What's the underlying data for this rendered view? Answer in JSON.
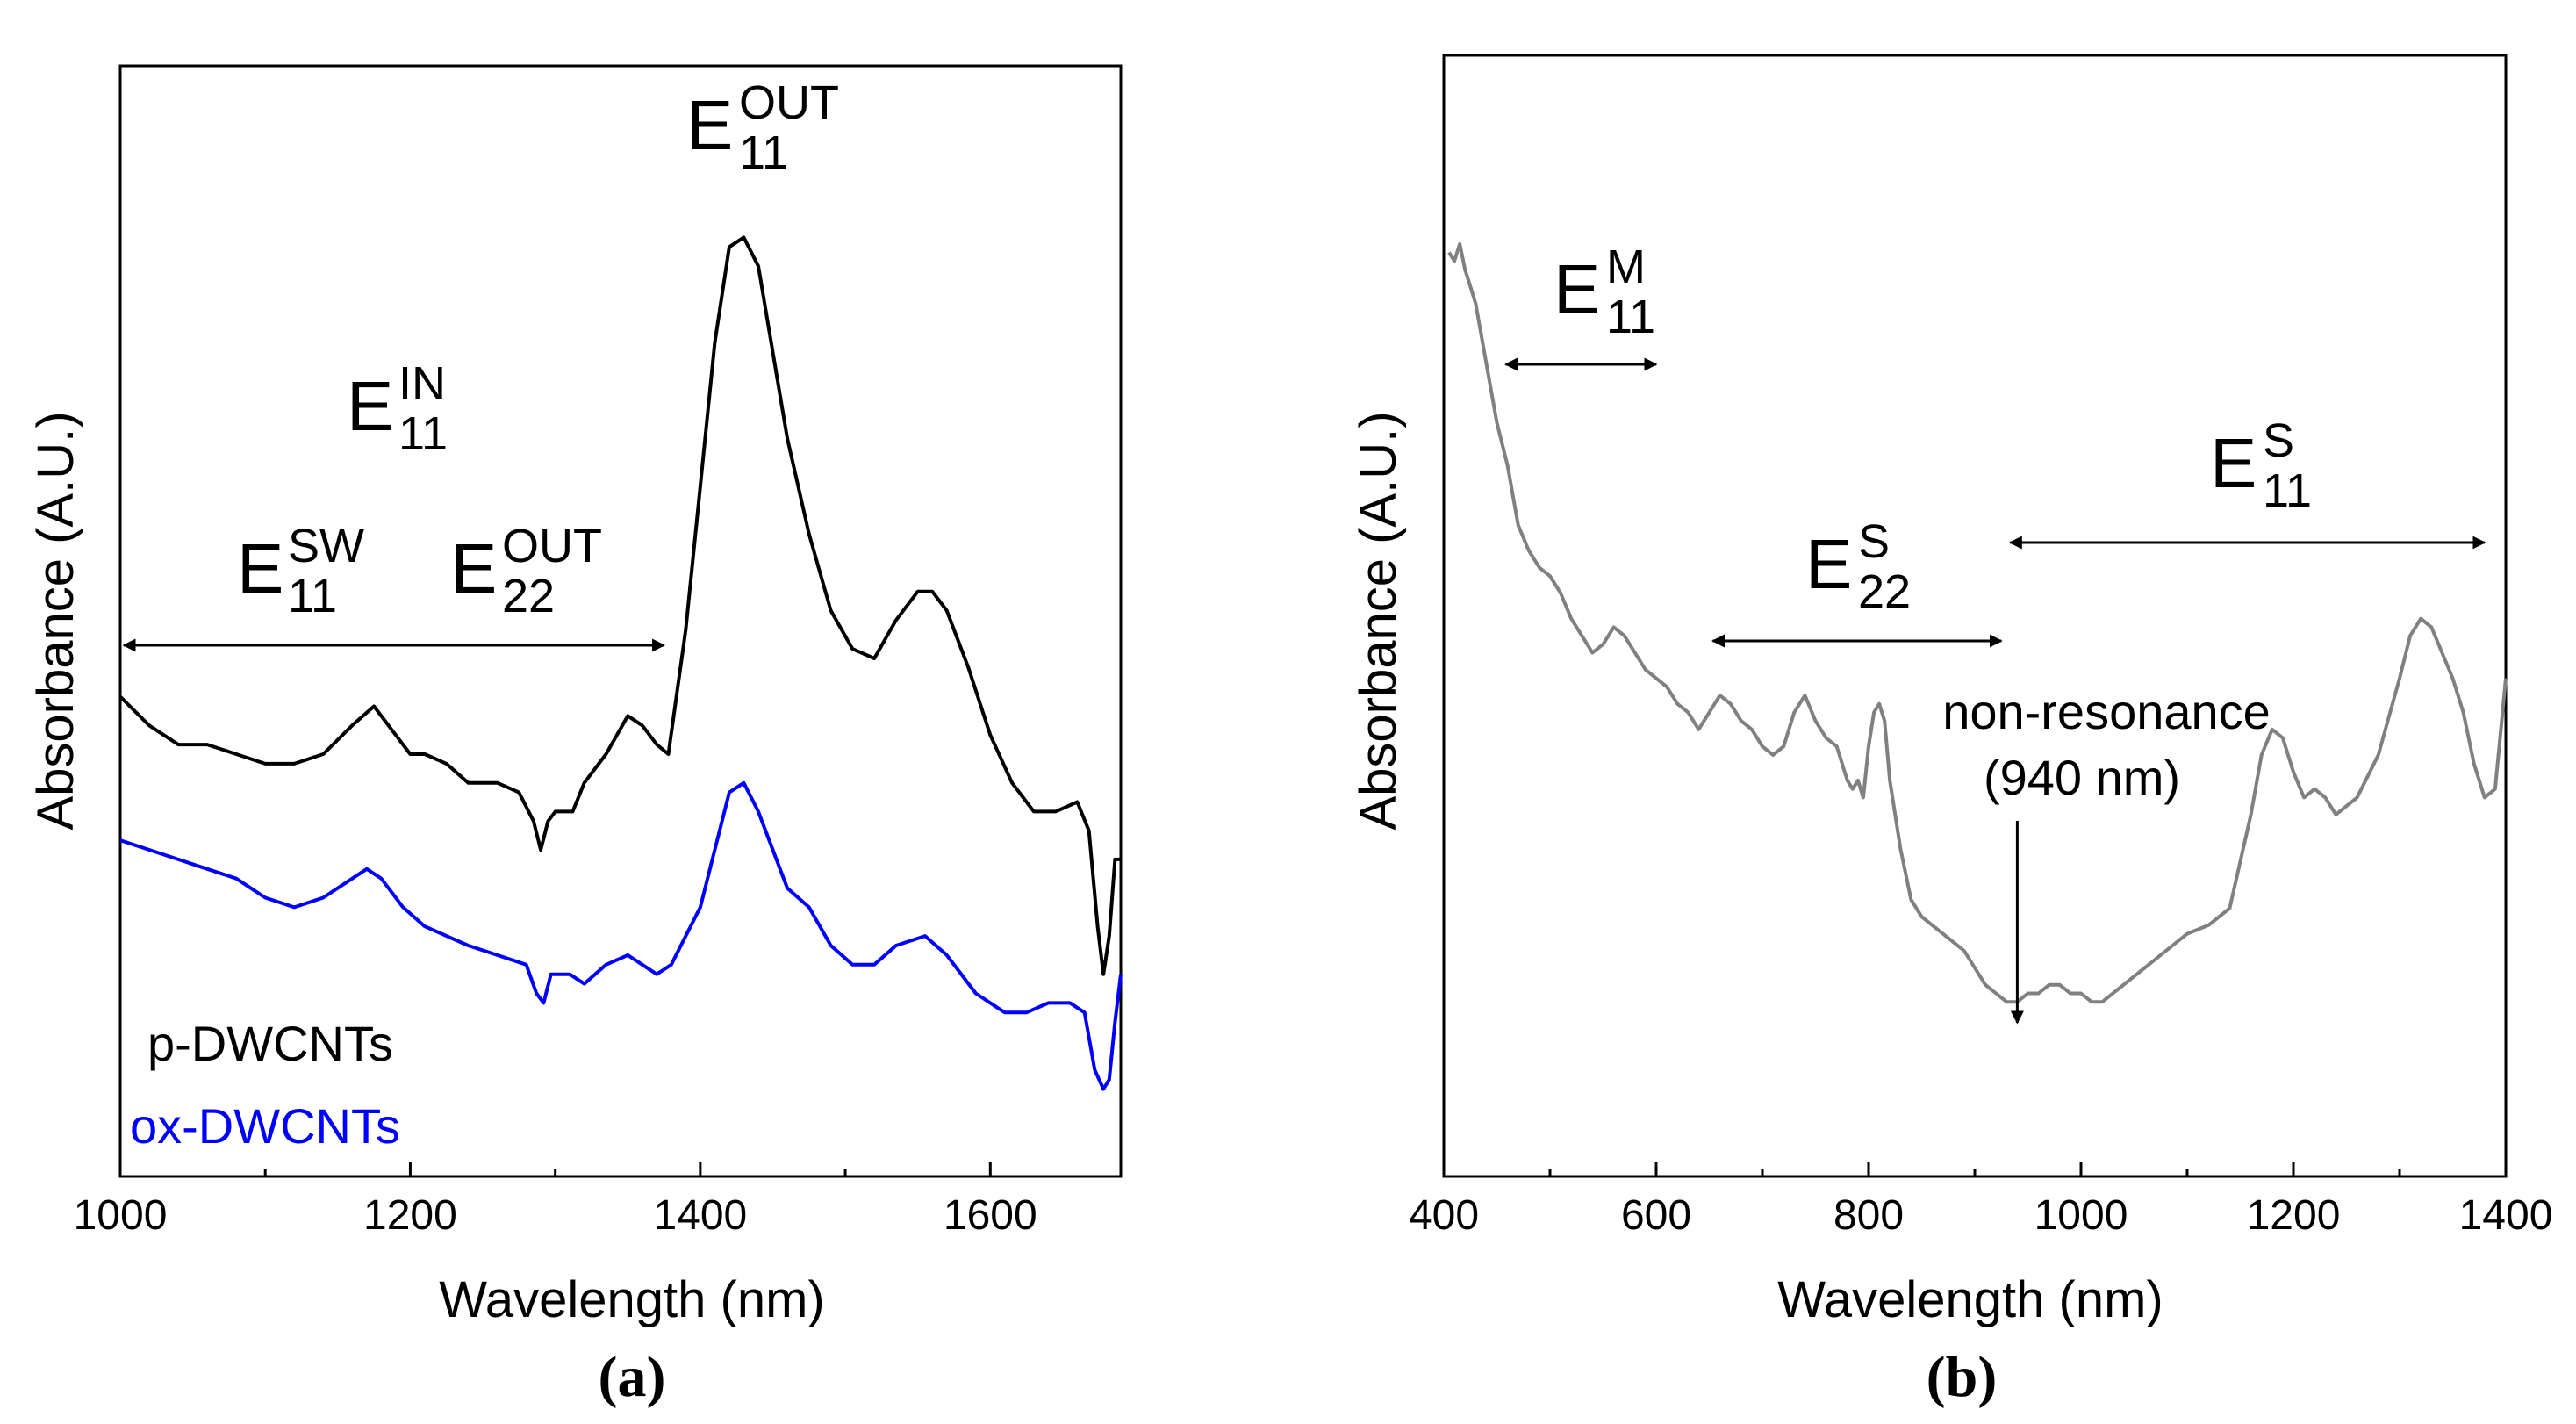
{
  "colors": {
    "axis": "#000000",
    "p_series": "#000000",
    "ox_series": "#0000ff",
    "b_series": "#808080"
  },
  "chart_data": [
    {
      "id": "a",
      "type": "line",
      "panel_label": "(a)",
      "xlabel": "Wavelength (nm)",
      "ylabel": "Absorbance (A.U.)",
      "xlim": [
        1000,
        1690
      ],
      "ylim": [
        0,
        1
      ],
      "xticks": [
        1000,
        1200,
        1400,
        1600
      ],
      "tick_labels": [
        "1000",
        "1200",
        "1400",
        "1600"
      ],
      "y_ticks_shown": false,
      "legend": [
        {
          "label": "p-DWCNTs",
          "color": "#000000"
        },
        {
          "label": "ox-DWCNTs",
          "color": "#0000ff"
        }
      ],
      "series": [
        {
          "name": "p-DWCNTs",
          "color": "#000000",
          "x": [
            1000,
            1020,
            1040,
            1060,
            1080,
            1100,
            1120,
            1140,
            1160,
            1175,
            1190,
            1200,
            1210,
            1225,
            1240,
            1260,
            1275,
            1285,
            1290,
            1295,
            1300,
            1305,
            1312,
            1320,
            1335,
            1350,
            1360,
            1370,
            1378,
            1390,
            1400,
            1410,
            1420,
            1430,
            1440,
            1450,
            1460,
            1475,
            1490,
            1505,
            1520,
            1535,
            1550,
            1560,
            1570,
            1585,
            1600,
            1615,
            1630,
            1645,
            1660,
            1668,
            1674,
            1678,
            1682,
            1686,
            1690
          ],
          "values": [
            0.46,
            0.43,
            0.41,
            0.41,
            0.4,
            0.39,
            0.39,
            0.4,
            0.43,
            0.45,
            0.42,
            0.4,
            0.4,
            0.39,
            0.37,
            0.37,
            0.36,
            0.33,
            0.3,
            0.33,
            0.34,
            0.34,
            0.34,
            0.37,
            0.4,
            0.44,
            0.43,
            0.41,
            0.4,
            0.53,
            0.68,
            0.83,
            0.93,
            0.94,
            0.91,
            0.82,
            0.73,
            0.63,
            0.55,
            0.51,
            0.5,
            0.54,
            0.57,
            0.57,
            0.55,
            0.49,
            0.42,
            0.37,
            0.34,
            0.34,
            0.35,
            0.32,
            0.22,
            0.17,
            0.21,
            0.29,
            0.29
          ]
        },
        {
          "name": "ox-DWCNTs",
          "color": "#0000ff",
          "x": [
            1000,
            1020,
            1040,
            1060,
            1080,
            1100,
            1120,
            1140,
            1160,
            1170,
            1180,
            1195,
            1210,
            1225,
            1240,
            1260,
            1280,
            1287,
            1292,
            1297,
            1302,
            1310,
            1320,
            1335,
            1350,
            1360,
            1370,
            1380,
            1390,
            1400,
            1410,
            1420,
            1430,
            1440,
            1450,
            1460,
            1475,
            1490,
            1505,
            1520,
            1535,
            1555,
            1570,
            1590,
            1610,
            1625,
            1640,
            1655,
            1665,
            1672,
            1678,
            1682,
            1686,
            1690
          ],
          "values": [
            0.31,
            0.3,
            0.29,
            0.28,
            0.27,
            0.25,
            0.24,
            0.25,
            0.27,
            0.28,
            0.27,
            0.24,
            0.22,
            0.21,
            0.2,
            0.19,
            0.18,
            0.15,
            0.14,
            0.17,
            0.17,
            0.17,
            0.16,
            0.18,
            0.19,
            0.18,
            0.17,
            0.18,
            0.21,
            0.24,
            0.3,
            0.36,
            0.37,
            0.34,
            0.3,
            0.26,
            0.24,
            0.2,
            0.18,
            0.18,
            0.2,
            0.21,
            0.19,
            0.15,
            0.13,
            0.13,
            0.14,
            0.14,
            0.13,
            0.07,
            0.05,
            0.06,
            0.12,
            0.17
          ]
        }
      ],
      "annotations": [
        {
          "main": "E",
          "sup": "OUT",
          "sub": "11"
        },
        {
          "main": "E",
          "sup": "IN",
          "sub": "11"
        },
        {
          "main": "E",
          "sup": "SW",
          "sub": "11"
        },
        {
          "main": "E",
          "sup": "OUT",
          "sub": "22"
        }
      ],
      "arrows": [
        {
          "from": 1000,
          "to": 1375
        }
      ]
    },
    {
      "id": "b",
      "type": "line",
      "panel_label": "(b)",
      "xlabel": "Wavelength (nm)",
      "ylabel": "Absorbance (A.U.)",
      "xlim": [
        400,
        1400
      ],
      "ylim": [
        0,
        1
      ],
      "xticks": [
        400,
        600,
        800,
        1000,
        1200,
        1400
      ],
      "tick_labels": [
        "400",
        "600",
        "800",
        "1000",
        "1200",
        "1400"
      ],
      "y_ticks_shown": false,
      "series": [
        {
          "name": "DWCNTs",
          "color": "#808080",
          "x": [
            405,
            410,
            415,
            420,
            425,
            430,
            440,
            450,
            460,
            470,
            480,
            490,
            500,
            510,
            520,
            530,
            540,
            550,
            560,
            570,
            580,
            590,
            600,
            610,
            620,
            630,
            640,
            650,
            660,
            670,
            680,
            690,
            700,
            710,
            720,
            730,
            740,
            750,
            760,
            770,
            780,
            785,
            790,
            795,
            800,
            805,
            810,
            815,
            820,
            830,
            840,
            850,
            860,
            870,
            880,
            890,
            900,
            910,
            920,
            930,
            940,
            950,
            960,
            970,
            980,
            990,
            1000,
            1010,
            1020,
            1030,
            1040,
            1060,
            1080,
            1100,
            1120,
            1140,
            1160,
            1170,
            1180,
            1190,
            1200,
            1210,
            1220,
            1230,
            1240,
            1260,
            1280,
            1300,
            1310,
            1320,
            1330,
            1340,
            1350,
            1360,
            1370,
            1380,
            1390,
            1400
          ],
          "values": [
            0.92,
            0.91,
            0.93,
            0.9,
            0.88,
            0.86,
            0.79,
            0.72,
            0.67,
            0.6,
            0.57,
            0.55,
            0.54,
            0.52,
            0.49,
            0.47,
            0.45,
            0.46,
            0.48,
            0.47,
            0.45,
            0.43,
            0.42,
            0.41,
            0.39,
            0.38,
            0.36,
            0.38,
            0.4,
            0.39,
            0.37,
            0.36,
            0.34,
            0.33,
            0.34,
            0.38,
            0.4,
            0.37,
            0.35,
            0.34,
            0.3,
            0.29,
            0.3,
            0.28,
            0.34,
            0.38,
            0.39,
            0.37,
            0.3,
            0.22,
            0.16,
            0.14,
            0.13,
            0.12,
            0.11,
            0.1,
            0.08,
            0.06,
            0.05,
            0.04,
            0.04,
            0.05,
            0.05,
            0.06,
            0.06,
            0.05,
            0.05,
            0.04,
            0.04,
            0.05,
            0.06,
            0.08,
            0.1,
            0.12,
            0.13,
            0.15,
            0.26,
            0.33,
            0.36,
            0.35,
            0.31,
            0.28,
            0.29,
            0.28,
            0.26,
            0.28,
            0.33,
            0.42,
            0.47,
            0.49,
            0.48,
            0.45,
            0.42,
            0.38,
            0.32,
            0.28,
            0.29,
            0.42
          ]
        }
      ],
      "annotations": [
        {
          "main": "E",
          "sup": "M",
          "sub": "11"
        },
        {
          "main": "E",
          "sup": "S",
          "sub": "11"
        },
        {
          "main": "E",
          "sup": "S",
          "sub": "22"
        }
      ],
      "arrows": [
        {
          "from": 455,
          "to": 600
        },
        {
          "from": 650,
          "to": 925
        },
        {
          "from": 930,
          "to": 1380
        }
      ],
      "callout": {
        "line1": "non-resonance",
        "line2": "(940 nm)",
        "at": 940
      }
    }
  ]
}
